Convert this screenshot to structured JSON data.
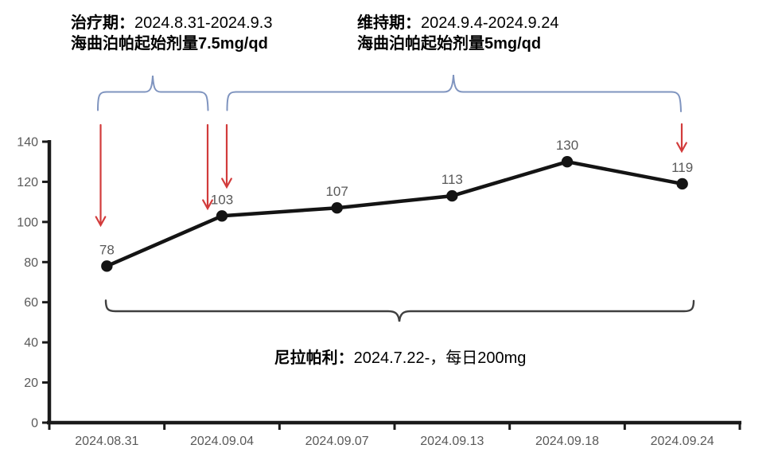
{
  "colors": {
    "background": "#ffffff",
    "series_line": "#141414",
    "marker": "#141414",
    "axis": "#1a1a1a",
    "tick_label": "#595959",
    "data_label": "#595959",
    "arrow": "#d23b3b",
    "period_brace": "#7f94bf",
    "duration_brace": "#3f3f3f",
    "annotation_text": "#000000"
  },
  "annotations": {
    "treatment_period": {
      "title": "治疗期：",
      "date_range": "2024.8.31-2024.9.3",
      "dose_line": "海曲泊帕起始剂量7.5mg/qd"
    },
    "maintenance_period": {
      "title": "维持期：",
      "date_range": "2024.9.4-2024.9.24",
      "dose_line": "海曲泊帕起始剂量5mg/qd"
    },
    "concomitant_medication": {
      "title": "尼拉帕利：",
      "detail": "2024.7.22-，每日200mg"
    }
  },
  "chart_data": {
    "type": "line",
    "categories": [
      "2024.08.31",
      "2024.09.04",
      "2024.09.07",
      "2024.09.13",
      "2024.09.18",
      "2024.09.24"
    ],
    "values": [
      78,
      103,
      107,
      113,
      130,
      119
    ],
    "title": "",
    "xlabel": "",
    "ylabel": "",
    "ylim": [
      0,
      140
    ],
    "yticks": [
      0,
      20,
      40,
      60,
      80,
      100,
      120,
      140
    ],
    "grid": false,
    "legend": false,
    "marker": "circle"
  }
}
